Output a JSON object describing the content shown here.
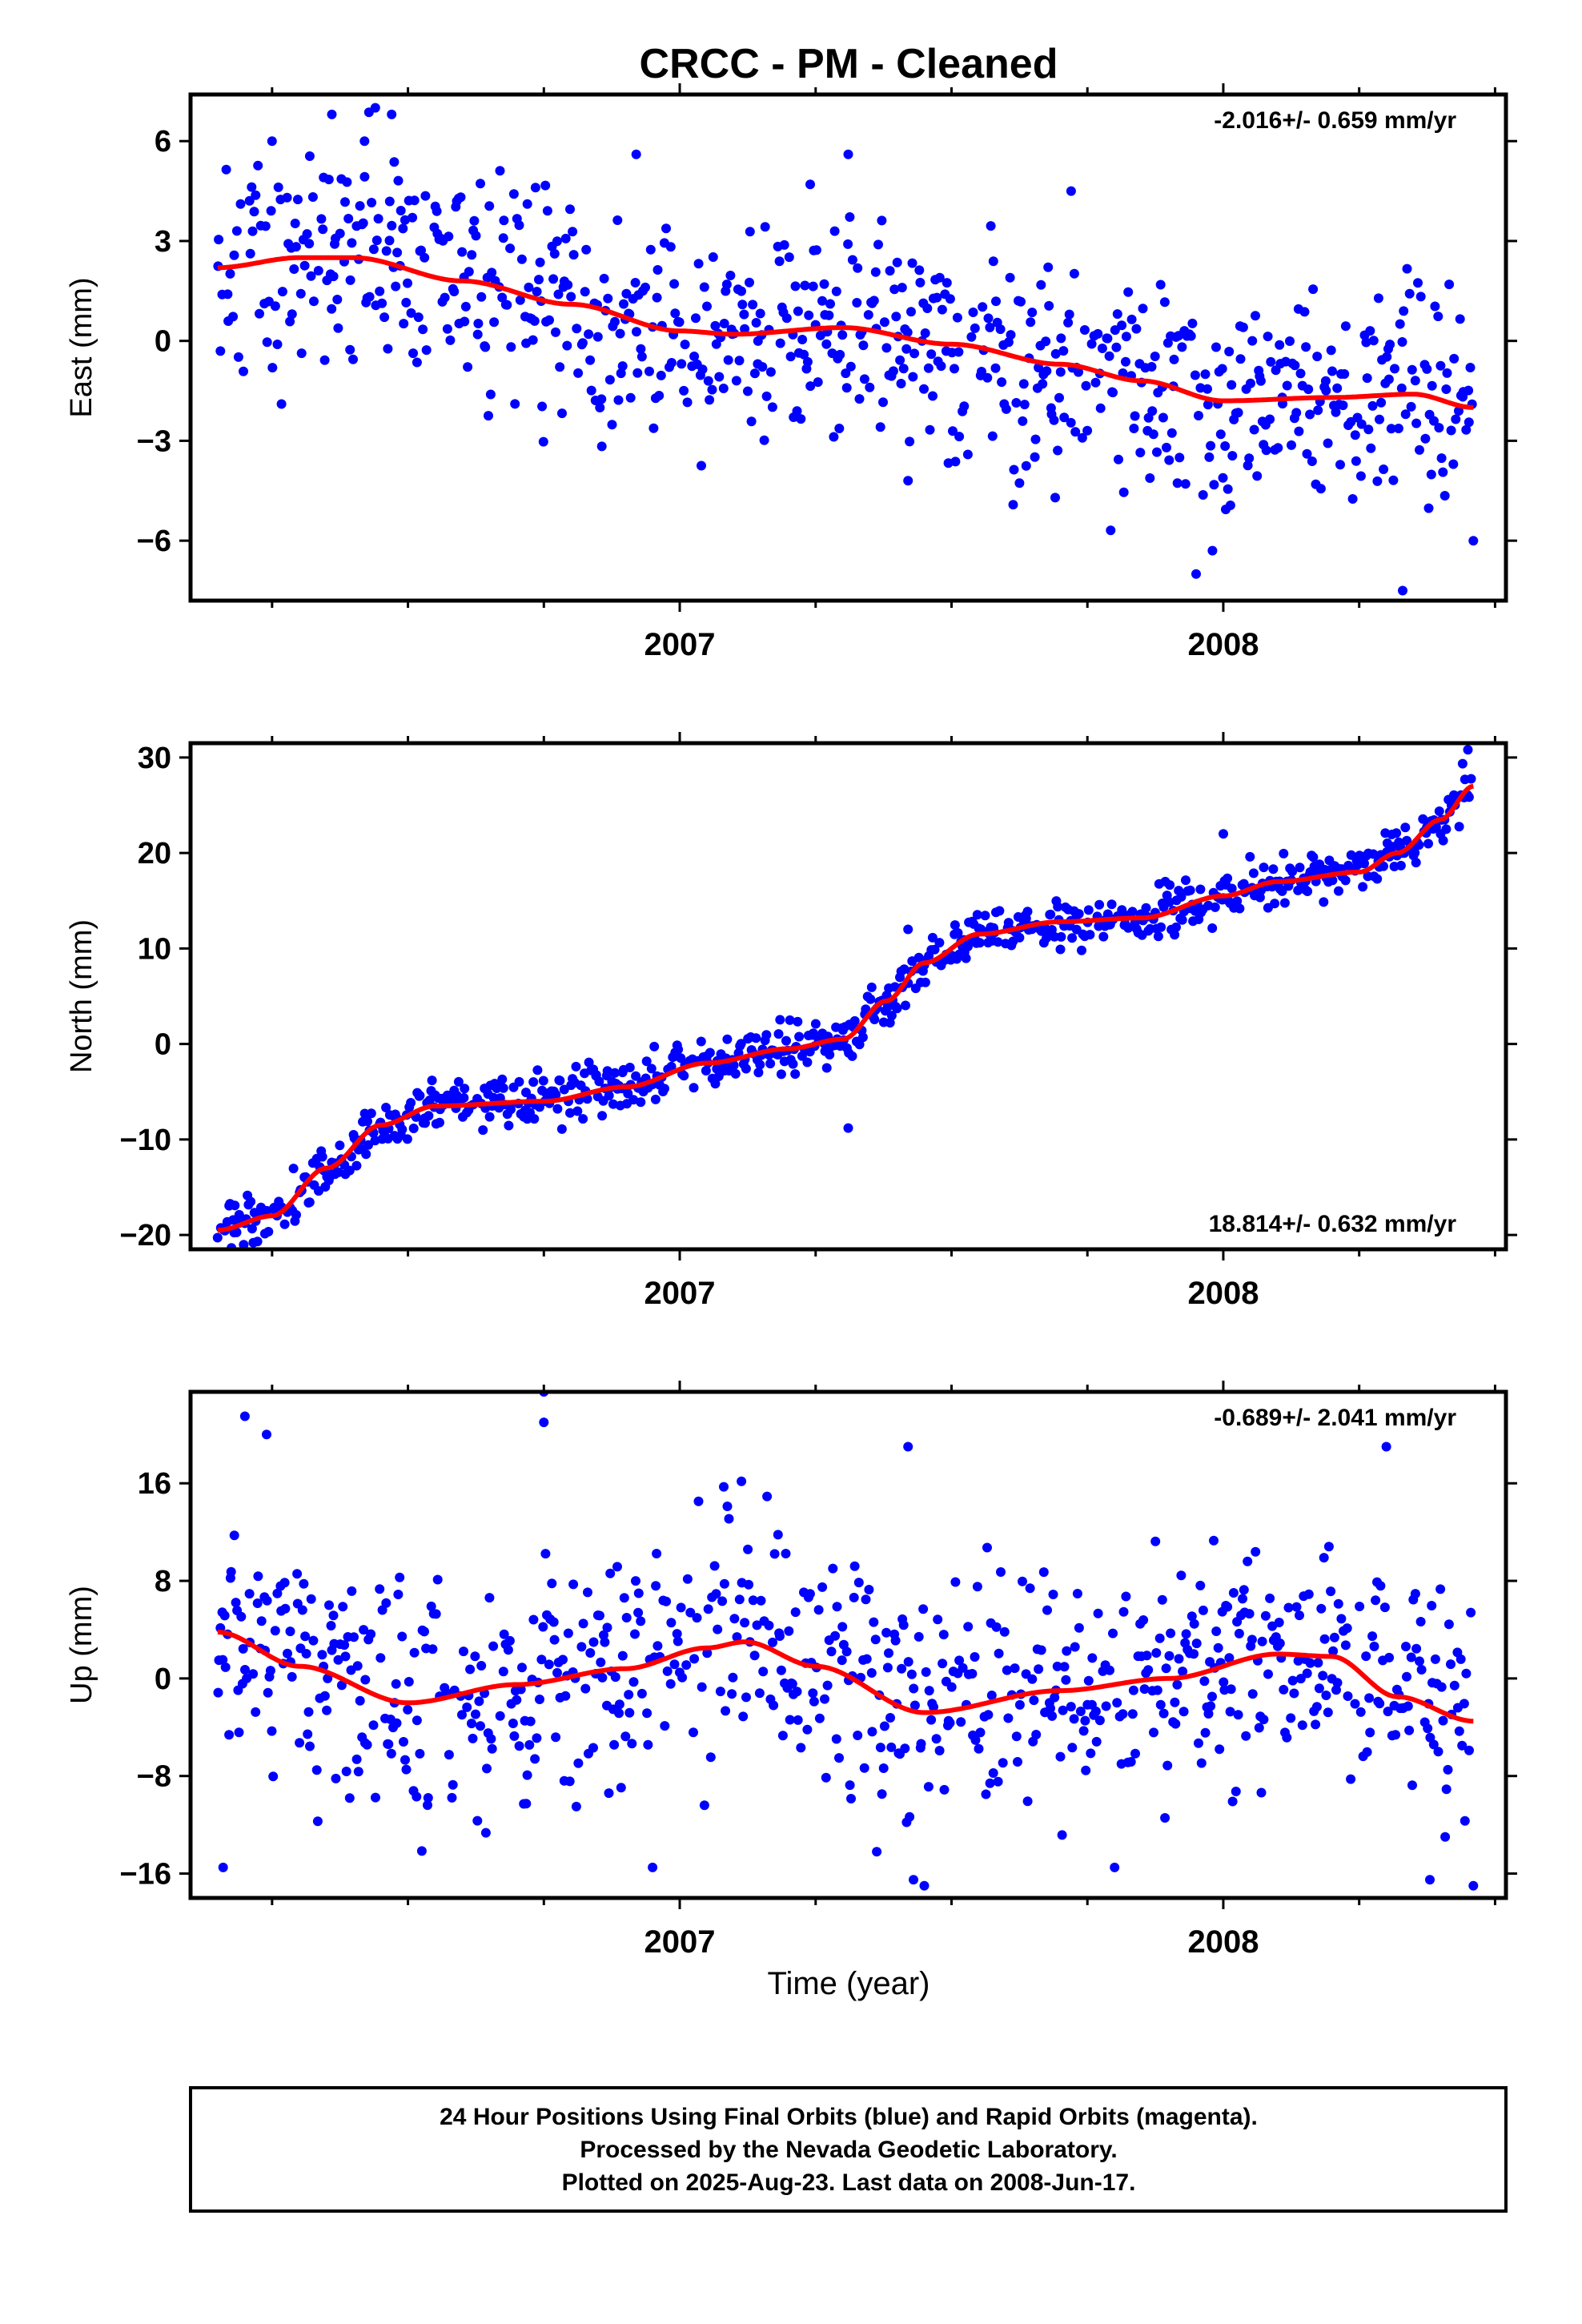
{
  "title": "CRCC  - PM - Cleaned",
  "xlabel": "Time (year)",
  "footer": {
    "line1": "24 Hour Positions Using Final Orbits (blue) and Rapid Orbits (magenta).",
    "line2": "Processed by the Nevada Geodetic Laboratory.",
    "line3": "Plotted on 2025-Aug-23. Last data on 2008-Jun-17."
  },
  "colors": {
    "points": "#0000ff",
    "fit": "#ff0000",
    "frame": "#000000"
  },
  "chart_data": [
    {
      "type": "scatter",
      "panel": "east",
      "ylabel": "East (mm)",
      "rate_label": "-2.016+/- 0.659 mm/yr",
      "rate_position": "top-right",
      "xlim": [
        2006.1,
        2008.52
      ],
      "ylim": [
        -7.8,
        7.4
      ],
      "yticks": [
        6,
        3,
        0,
        -3,
        -6
      ],
      "ytick_labels": [
        "6",
        "3",
        "0",
        "−3",
        "−6"
      ],
      "xticks": [
        2007,
        2008
      ],
      "xtick_labels": [
        "2007",
        "2008"
      ],
      "noise_sd": 1.75,
      "series": [
        {
          "name": "Final Orbits (blue)",
          "x_start": 2006.15,
          "x_end": 2008.46,
          "x_step": 0.0025,
          "trend_knots": [
            [
              2006.15,
              2.2
            ],
            [
              2006.3,
              2.5
            ],
            [
              2006.4,
              2.5
            ],
            [
              2006.6,
              1.8
            ],
            [
              2006.8,
              1.1
            ],
            [
              2007.0,
              0.3
            ],
            [
              2007.1,
              0.2
            ],
            [
              2007.3,
              0.4
            ],
            [
              2007.5,
              -0.1
            ],
            [
              2007.7,
              -0.7
            ],
            [
              2007.85,
              -1.2
            ],
            [
              2008.0,
              -1.8
            ],
            [
              2008.2,
              -1.7
            ],
            [
              2008.35,
              -1.6
            ],
            [
              2008.46,
              -2.0
            ]
          ],
          "outliers": [
            [
              2006.36,
              6.8
            ],
            [
              2006.42,
              6.0
            ],
            [
              2006.44,
              7.0
            ],
            [
              2006.47,
              6.8
            ],
            [
              2006.25,
              6.0
            ],
            [
              2006.92,
              5.6
            ],
            [
              2007.31,
              5.6
            ],
            [
              2007.24,
              4.7
            ],
            [
              2007.72,
              4.5
            ],
            [
              2007.95,
              -7.0
            ],
            [
              2007.98,
              -6.3
            ],
            [
              2008.33,
              -7.5
            ],
            [
              2008.46,
              -6.0
            ],
            [
              2007.42,
              -4.2
            ]
          ]
        }
      ],
      "fit": {
        "name": "fit",
        "x": [
          2006.15,
          2006.3,
          2006.4,
          2006.6,
          2006.8,
          2007.0,
          2007.1,
          2007.3,
          2007.5,
          2007.7,
          2007.85,
          2008.0,
          2008.2,
          2008.35,
          2008.46
        ],
        "y": [
          2.2,
          2.5,
          2.5,
          1.8,
          1.1,
          0.3,
          0.2,
          0.4,
          -0.1,
          -0.7,
          -1.2,
          -1.8,
          -1.7,
          -1.6,
          -2.0
        ]
      }
    },
    {
      "type": "scatter",
      "panel": "north",
      "ylabel": "North (mm)",
      "rate_label": "18.814+/- 0.632 mm/yr",
      "rate_position": "bottom-right",
      "xlim": [
        2006.1,
        2008.52
      ],
      "ylim": [
        -21.5,
        31.5
      ],
      "yticks": [
        30,
        20,
        10,
        0,
        -10,
        -20
      ],
      "ytick_labels": [
        "30",
        "20",
        "10",
        "0",
        "−10",
        "−20"
      ],
      "xticks": [
        2007,
        2008
      ],
      "xtick_labels": [
        "2007",
        "2008"
      ],
      "noise_sd": 1.3,
      "series": [
        {
          "name": "Final Orbits (blue)",
          "x_start": 2006.15,
          "x_end": 2008.46,
          "x_step": 0.0025,
          "trend_knots": [
            [
              2006.15,
              -19.5
            ],
            [
              2006.25,
              -18.0
            ],
            [
              2006.35,
              -13.0
            ],
            [
              2006.45,
              -8.5
            ],
            [
              2006.55,
              -6.5
            ],
            [
              2006.75,
              -6.0
            ],
            [
              2006.9,
              -4.5
            ],
            [
              2007.05,
              -2.0
            ],
            [
              2007.2,
              -0.5
            ],
            [
              2007.3,
              0.5
            ],
            [
              2007.38,
              4.5
            ],
            [
              2007.45,
              8.5
            ],
            [
              2007.55,
              11.5
            ],
            [
              2007.7,
              12.8
            ],
            [
              2007.85,
              13.2
            ],
            [
              2008.0,
              15.5
            ],
            [
              2008.1,
              17.0
            ],
            [
              2008.25,
              18.0
            ],
            [
              2008.32,
              20.0
            ],
            [
              2008.4,
              23.5
            ],
            [
              2008.46,
              27.0
            ]
          ],
          "outliers": [
            [
              2007.31,
              -8.8
            ],
            [
              2007.42,
              12.0
            ],
            [
              2008.0,
              22.0
            ],
            [
              2008.45,
              30.8
            ]
          ]
        }
      ],
      "fit": {
        "name": "fit",
        "x": [
          2006.15,
          2006.25,
          2006.35,
          2006.45,
          2006.55,
          2006.75,
          2006.9,
          2007.05,
          2007.2,
          2007.3,
          2007.38,
          2007.45,
          2007.55,
          2007.7,
          2007.85,
          2008.0,
          2008.1,
          2008.25,
          2008.32,
          2008.4,
          2008.46
        ],
        "y": [
          -19.5,
          -18.0,
          -13.0,
          -8.5,
          -6.5,
          -6.0,
          -4.5,
          -2.0,
          -0.5,
          0.5,
          4.5,
          8.5,
          11.5,
          12.8,
          13.2,
          15.5,
          17.0,
          18.0,
          20.0,
          23.5,
          27.0
        ]
      }
    },
    {
      "type": "scatter",
      "panel": "up",
      "ylabel": "Up (mm)",
      "rate_label": "-0.689+/- 2.041 mm/yr",
      "rate_position": "top-right",
      "xlim": [
        2006.1,
        2008.52
      ],
      "ylim": [
        -18,
        23.5
      ],
      "yticks": [
        16,
        8,
        0,
        -8,
        -16
      ],
      "ytick_labels": [
        "16",
        "8",
        "0",
        "−8",
        "−16"
      ],
      "xticks": [
        2007,
        2008
      ],
      "xtick_labels": [
        "2007",
        "2008"
      ],
      "noise_sd": 5.0,
      "series": [
        {
          "name": "Final Orbits (blue)",
          "x_start": 2006.15,
          "x_end": 2008.46,
          "x_step": 0.0025,
          "trend_knots": [
            [
              2006.15,
              3.8
            ],
            [
              2006.3,
              1.0
            ],
            [
              2006.5,
              -2.0
            ],
            [
              2006.7,
              -0.5
            ],
            [
              2006.9,
              0.8
            ],
            [
              2007.05,
              2.5
            ],
            [
              2007.12,
              3.0
            ],
            [
              2007.25,
              1.0
            ],
            [
              2007.45,
              -2.8
            ],
            [
              2007.7,
              -1.0
            ],
            [
              2007.9,
              0.0
            ],
            [
              2008.1,
              2.0
            ],
            [
              2008.2,
              1.8
            ],
            [
              2008.32,
              -1.5
            ],
            [
              2008.46,
              -3.5
            ]
          ],
          "outliers": [
            [
              2006.75,
              23.5
            ],
            [
              2006.75,
              21.0
            ],
            [
              2006.2,
              21.5
            ],
            [
              2006.24,
              20.0
            ],
            [
              2008.3,
              19.0
            ],
            [
              2007.42,
              19.0
            ],
            [
              2006.16,
              -15.5
            ],
            [
              2006.95,
              -15.5
            ],
            [
              2007.43,
              -16.5
            ],
            [
              2007.45,
              -17.0
            ],
            [
              2007.8,
              -15.5
            ],
            [
              2008.46,
              -17.0
            ],
            [
              2008.38,
              -16.5
            ]
          ]
        }
      ],
      "fit": {
        "name": "fit",
        "x": [
          2006.15,
          2006.3,
          2006.5,
          2006.7,
          2006.9,
          2007.05,
          2007.12,
          2007.25,
          2007.45,
          2007.7,
          2007.9,
          2008.1,
          2008.2,
          2008.32,
          2008.46
        ],
        "y": [
          3.8,
          1.0,
          -2.0,
          -0.5,
          0.8,
          2.5,
          3.0,
          1.0,
          -2.8,
          -1.0,
          0.0,
          2.0,
          1.8,
          -1.5,
          -3.5
        ]
      }
    }
  ]
}
